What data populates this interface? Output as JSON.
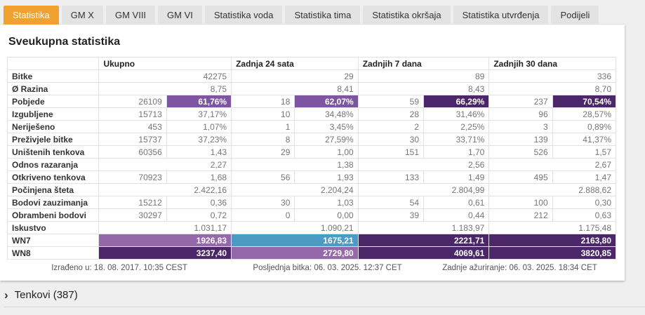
{
  "tabs": [
    {
      "label": "Statistika",
      "active": true
    },
    {
      "label": "GM X",
      "active": false
    },
    {
      "label": "GM VIII",
      "active": false
    },
    {
      "label": "GM VI",
      "active": false
    },
    {
      "label": "Statistika voda",
      "active": false
    },
    {
      "label": "Statistika tima",
      "active": false
    },
    {
      "label": "Statistika okršaja",
      "active": false
    },
    {
      "label": "Statistika utvrđenja",
      "active": false
    },
    {
      "label": "Podijeli",
      "active": false
    }
  ],
  "colors": {
    "active_tab_orange": "#f0a12f",
    "purple_light": "#9468a9",
    "purple_mid": "#7d55a1",
    "purple_dark": "#4b2769",
    "teal": "#4b9cc4"
  },
  "panel": {
    "title": "Sveukupna statistika",
    "table": {
      "periods": [
        "Ukupno",
        "Zadnja 24 sata",
        "Zadnjih 7 dana",
        "Zadnjih 30 dana"
      ],
      "rows": [
        {
          "label": "Bitke",
          "type": "single",
          "values": [
            "42275",
            "29",
            "89",
            "336"
          ]
        },
        {
          "label": "Ø Razina",
          "type": "single",
          "values": [
            "8,75",
            "8,41",
            "8,43",
            "8,70"
          ]
        },
        {
          "label": "Pobjede",
          "type": "pair",
          "counts": [
            "26109",
            "18",
            "59",
            "237"
          ],
          "vals": [
            "61,76%",
            "62,07%",
            "66,29%",
            "70,54%"
          ],
          "hl": [
            "purple_mid",
            "purple_mid",
            "purple_dark",
            "purple_dark"
          ]
        },
        {
          "label": "Izgubljene",
          "type": "pair",
          "counts": [
            "15713",
            "10",
            "28",
            "96"
          ],
          "vals": [
            "37,17%",
            "34,48%",
            "31,46%",
            "28,57%"
          ]
        },
        {
          "label": "Neriješeno",
          "type": "pair",
          "counts": [
            "453",
            "1",
            "2",
            "3"
          ],
          "vals": [
            "1,07%",
            "3,45%",
            "2,25%",
            "0,89%"
          ]
        },
        {
          "label": "Preživjele bitke",
          "type": "pair",
          "counts": [
            "15737",
            "8",
            "30",
            "139"
          ],
          "vals": [
            "37,23%",
            "27,59%",
            "33,71%",
            "41,37%"
          ]
        },
        {
          "label": "Uništenih tenkova",
          "type": "pair",
          "counts": [
            "60356",
            "29",
            "151",
            "526"
          ],
          "vals": [
            "1,43",
            "1,00",
            "1,70",
            "1,57"
          ],
          "val_text_color": [
            "purple",
            null,
            null,
            "purple"
          ]
        },
        {
          "label": "Odnos razaranja",
          "type": "single",
          "values": [
            "2,27",
            "1,38",
            "2,56",
            "2,67"
          ]
        },
        {
          "label": "Otkriveno tenkova",
          "type": "pair",
          "counts": [
            "70923",
            "56",
            "133",
            "495"
          ],
          "vals": [
            "1,68",
            "1,93",
            "1,49",
            "1,47"
          ]
        },
        {
          "label": "Počinjena šteta",
          "type": "single",
          "values": [
            "2.422,16",
            "2.204,24",
            "2.804,99",
            "2.888,62"
          ]
        },
        {
          "label": "Bodovi zauzimanja",
          "type": "pair",
          "counts": [
            "15212",
            "30",
            "54",
            "100"
          ],
          "vals": [
            "0,36",
            "1,03",
            "0,61",
            "0,30"
          ]
        },
        {
          "label": "Obrambeni bodovi",
          "type": "pair",
          "counts": [
            "30297",
            "0",
            "39",
            "212"
          ],
          "vals": [
            "0,72",
            "0,00",
            "0,44",
            "0,63"
          ]
        },
        {
          "label": "Iskustvo",
          "type": "single",
          "values": [
            "1.031,17",
            "1.090,21",
            "1.183,97",
            "1.175,48"
          ]
        },
        {
          "label": "WN7",
          "type": "single",
          "values": [
            "1926,83",
            "1675,21",
            "2221,71",
            "2163,80"
          ],
          "hl": [
            "purple_light",
            "teal",
            "purple_dark",
            "purple_dark"
          ]
        },
        {
          "label": "WN8",
          "type": "single",
          "values": [
            "3237,40",
            "2729,80",
            "4069,61",
            "3820,85"
          ],
          "hl": [
            "purple_dark",
            "purple_light",
            "purple_dark",
            "purple_dark"
          ]
        }
      ],
      "footer": [
        "Izrađeno u: 18. 08. 2017. 10:35 CEST",
        "Posljednja bitka: 06. 03. 2025. 12:37 CET",
        "Zadnje ažuriranje: 06. 03. 2025. 18:34 CET"
      ]
    }
  },
  "tanks_section": {
    "chevron": "›",
    "label": "Tenkovi (387)"
  }
}
